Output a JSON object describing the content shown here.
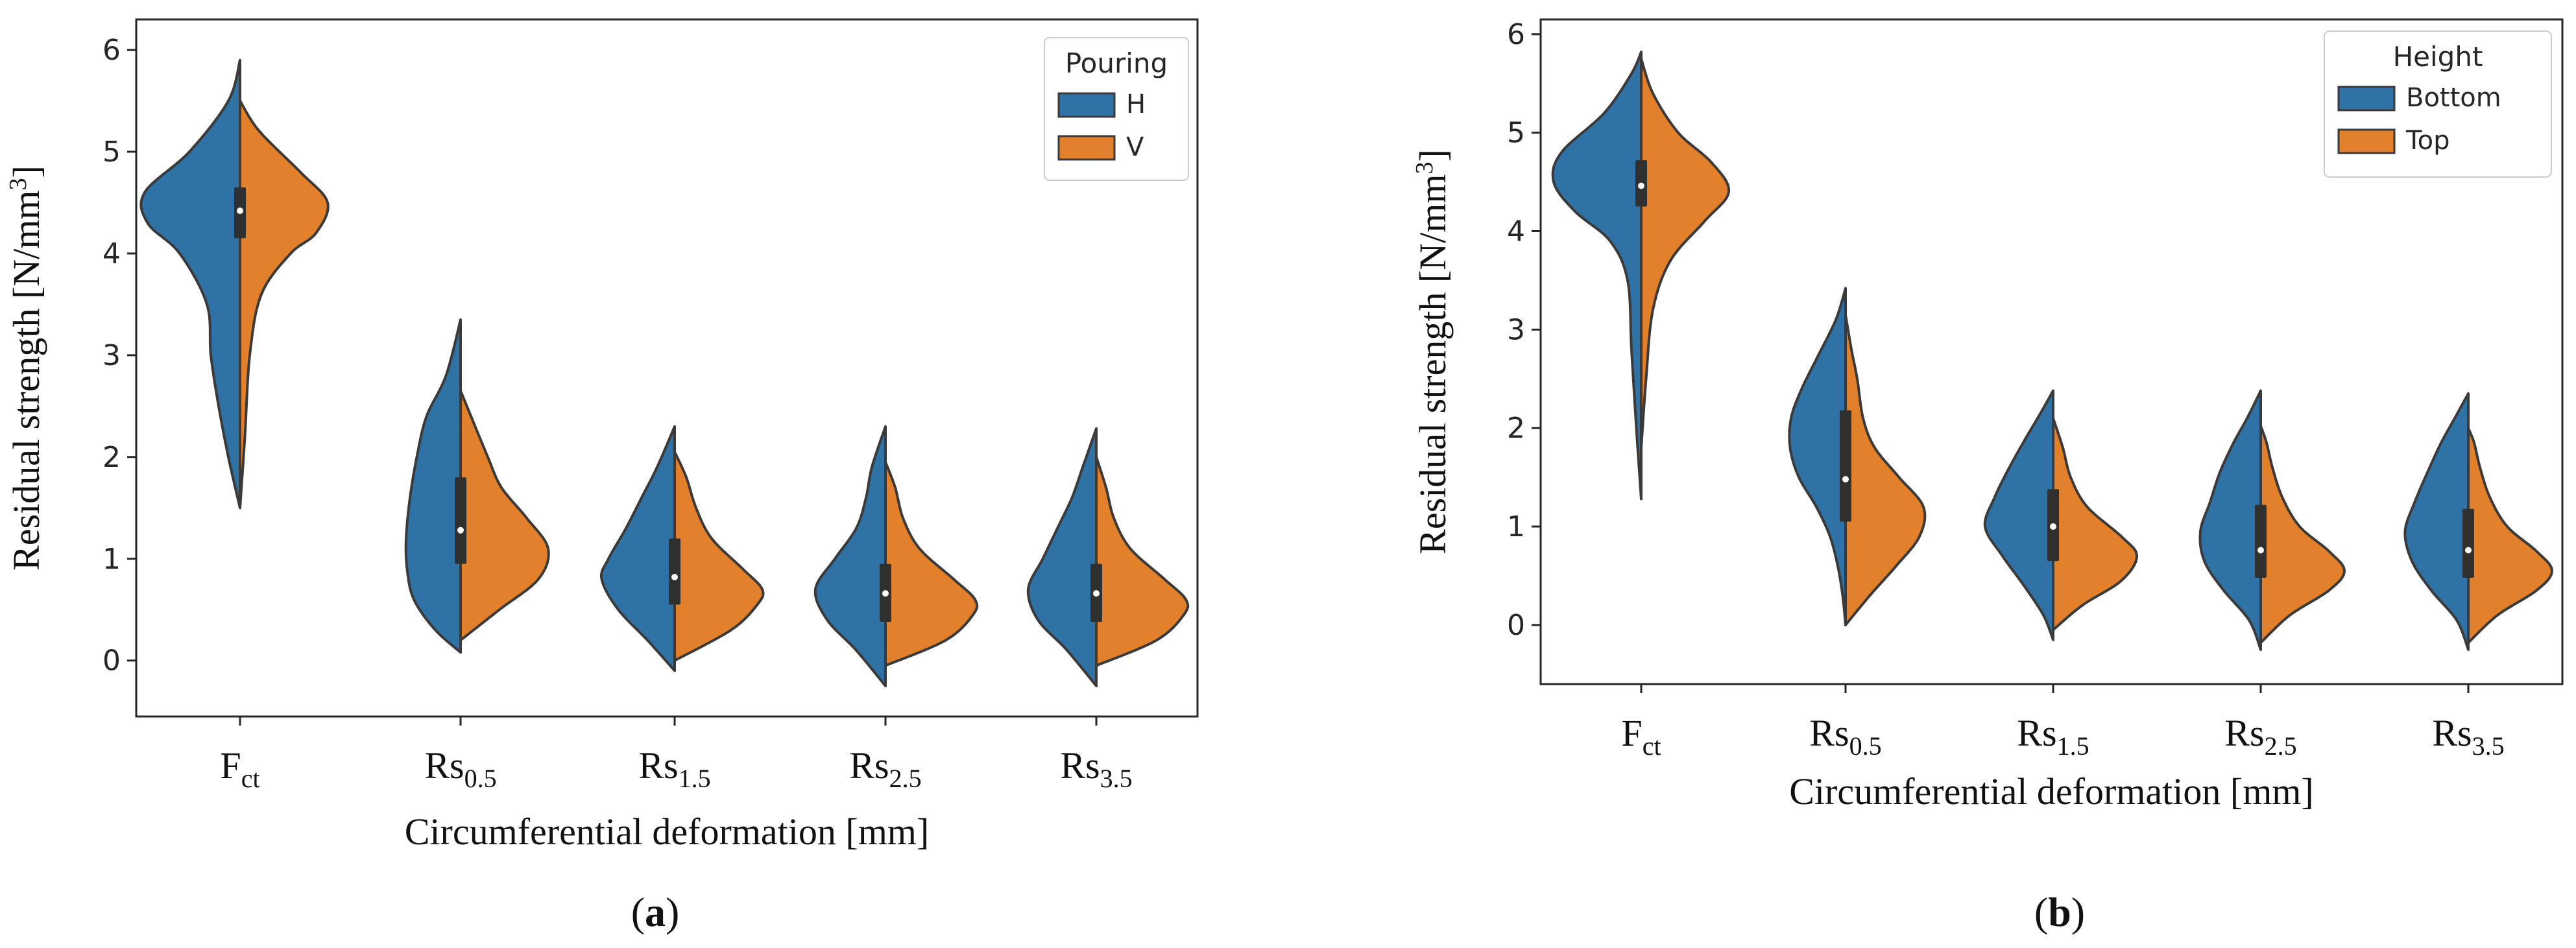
{
  "colors": {
    "series_a": "#2e72a6",
    "series_b": "#e3802b",
    "edge": "#3a3a3a",
    "box": "#303030",
    "median": "#ffffff",
    "frame": "#262626"
  },
  "chart_data": [
    {
      "panel": "a",
      "type": "violin",
      "panel_label_open": "(",
      "panel_label_letter": "a",
      "panel_label_close": ")",
      "xlabel": "Circumferential deformation [mm]",
      "ylabel_main": "Residual strength [N/mm",
      "ylabel_sup": "3",
      "ylabel_end": "]",
      "ylim": [
        -0.55,
        6.3
      ],
      "yticks": [
        "0",
        "1",
        "2",
        "3",
        "4",
        "5",
        "6"
      ],
      "grid": false,
      "legend": {
        "title": "Pouring",
        "placement": "top-right",
        "entries": [
          "H",
          "V"
        ]
      },
      "categories": [
        {
          "base": "F",
          "sub": "ct"
        },
        {
          "base": "Rs",
          "sub": "0.5"
        },
        {
          "base": "Rs",
          "sub": "1.5"
        },
        {
          "base": "Rs",
          "sub": "2.5"
        },
        {
          "base": "Rs",
          "sub": "3.5"
        }
      ],
      "series": [
        {
          "name": "H",
          "violins": [
            {
              "y": [
                1.5,
                2.0,
                2.5,
                3.0,
                3.5,
                4.0,
                4.3,
                4.6,
                5.0,
                5.5,
                5.9
              ],
              "w": [
                0.0,
                0.12,
                0.22,
                0.3,
                0.34,
                0.62,
                0.95,
                0.98,
                0.52,
                0.12,
                0.0
              ]
            },
            {
              "y": [
                0.08,
                0.3,
                0.6,
                0.9,
                1.2,
                1.6,
                2.0,
                2.4,
                2.8,
                3.35
              ],
              "w": [
                0.0,
                0.26,
                0.48,
                0.55,
                0.56,
                0.52,
                0.45,
                0.35,
                0.15,
                0.0
              ]
            },
            {
              "y": [
                -0.1,
                0.2,
                0.5,
                0.8,
                1.0,
                1.3,
                1.6,
                1.9,
                2.3
              ],
              "w": [
                0.0,
                0.28,
                0.58,
                0.75,
                0.68,
                0.5,
                0.34,
                0.18,
                0.0
              ]
            },
            {
              "y": [
                -0.25,
                0.1,
                0.4,
                0.7,
                1.0,
                1.3,
                1.6,
                1.9,
                2.3
              ],
              "w": [
                0.0,
                0.3,
                0.6,
                0.72,
                0.52,
                0.3,
                0.2,
                0.14,
                0.0
              ]
            },
            {
              "y": [
                -0.25,
                0.1,
                0.4,
                0.7,
                1.0,
                1.3,
                1.6,
                1.9,
                2.28
              ],
              "w": [
                0.0,
                0.3,
                0.6,
                0.7,
                0.55,
                0.4,
                0.25,
                0.14,
                0.0
              ]
            }
          ],
          "box": [
            {
              "q1": 4.15,
              "q3": 4.65,
              "median": 4.42
            },
            {
              "q1": 0.95,
              "q3": 1.8,
              "median": 1.28
            },
            {
              "q1": 0.55,
              "q3": 1.2,
              "median": 0.82
            },
            {
              "q1": 0.38,
              "q3": 0.95,
              "median": 0.66
            },
            {
              "q1": 0.38,
              "q3": 0.95,
              "median": 0.66
            }
          ]
        },
        {
          "name": "V",
          "violins": [
            {
              "y": [
                1.5,
                2.2,
                3.0,
                3.6,
                4.0,
                4.2,
                4.5,
                4.8,
                5.2,
                5.5
              ],
              "w": [
                0.0,
                0.05,
                0.1,
                0.22,
                0.52,
                0.78,
                0.9,
                0.62,
                0.2,
                0.0
              ]
            },
            {
              "y": [
                0.2,
                0.5,
                0.8,
                1.1,
                1.4,
                1.7,
                2.0,
                2.3,
                2.65
              ],
              "w": [
                0.0,
                0.4,
                0.8,
                0.9,
                0.68,
                0.42,
                0.28,
                0.15,
                0.0
              ]
            },
            {
              "y": [
                0.0,
                0.3,
                0.55,
                0.7,
                0.9,
                1.2,
                1.5,
                1.8,
                2.05
              ],
              "w": [
                0.0,
                0.58,
                0.85,
                0.9,
                0.7,
                0.38,
                0.22,
                0.12,
                0.0
              ]
            },
            {
              "y": [
                -0.05,
                0.2,
                0.45,
                0.6,
                0.8,
                1.1,
                1.4,
                1.7,
                1.95
              ],
              "w": [
                0.0,
                0.62,
                0.9,
                0.92,
                0.7,
                0.35,
                0.18,
                0.1,
                0.0
              ]
            },
            {
              "y": [
                -0.05,
                0.2,
                0.45,
                0.6,
                0.8,
                1.1,
                1.4,
                1.7,
                2.0
              ],
              "w": [
                0.0,
                0.62,
                0.9,
                0.92,
                0.7,
                0.35,
                0.18,
                0.1,
                0.0
              ]
            }
          ]
        }
      ]
    },
    {
      "panel": "b",
      "type": "violin",
      "panel_label_open": "(",
      "panel_label_letter": "b",
      "panel_label_close": ")",
      "xlabel": "Circumferential deformation [mm]",
      "ylabel_main": "Residual strength [N/mm",
      "ylabel_sup": "3",
      "ylabel_end": "]",
      "ylim": [
        -0.6,
        6.15
      ],
      "yticks": [
        "0",
        "1",
        "2",
        "3",
        "4",
        "5",
        "6"
      ],
      "grid": false,
      "legend": {
        "title": "Height",
        "placement": "top-right",
        "entries": [
          "Bottom",
          "Top"
        ]
      },
      "categories": [
        {
          "base": "F",
          "sub": "ct"
        },
        {
          "base": "Rs",
          "sub": "0.5"
        },
        {
          "base": "Rs",
          "sub": "1.5"
        },
        {
          "base": "Rs",
          "sub": "2.5"
        },
        {
          "base": "Rs",
          "sub": "3.5"
        }
      ],
      "series": [
        {
          "name": "Bottom",
          "violins": [
            {
              "y": [
                1.28,
                2.0,
                2.8,
                3.5,
                3.9,
                4.2,
                4.5,
                4.8,
                5.2,
                5.6,
                5.82
              ],
              "w": [
                0.0,
                0.05,
                0.1,
                0.14,
                0.32,
                0.68,
                0.9,
                0.82,
                0.38,
                0.1,
                0.0
              ]
            },
            {
              "y": [
                0.0,
                0.3,
                0.6,
                0.9,
                1.2,
                1.5,
                1.8,
                2.1,
                2.4,
                2.7,
                3.1,
                3.42
              ],
              "w": [
                0.0,
                0.03,
                0.08,
                0.16,
                0.3,
                0.48,
                0.57,
                0.56,
                0.45,
                0.3,
                0.1,
                0.0
              ]
            },
            {
              "y": [
                -0.15,
                0.1,
                0.4,
                0.7,
                1.0,
                1.3,
                1.6,
                1.9,
                2.15,
                2.38
              ],
              "w": [
                0.0,
                0.1,
                0.3,
                0.52,
                0.7,
                0.6,
                0.45,
                0.28,
                0.13,
                0.0
              ]
            },
            {
              "y": [
                -0.25,
                0.05,
                0.35,
                0.65,
                0.95,
                1.25,
                1.55,
                1.85,
                2.1,
                2.38
              ],
              "w": [
                0.0,
                0.12,
                0.38,
                0.58,
                0.62,
                0.52,
                0.42,
                0.28,
                0.14,
                0.0
              ]
            },
            {
              "y": [
                -0.25,
                0.05,
                0.35,
                0.65,
                0.95,
                1.25,
                1.55,
                1.85,
                2.1,
                2.35
              ],
              "w": [
                0.0,
                0.12,
                0.38,
                0.58,
                0.65,
                0.55,
                0.42,
                0.28,
                0.14,
                0.0
              ]
            }
          ],
          "box": [
            {
              "q1": 4.25,
              "q3": 4.72,
              "median": 4.46
            },
            {
              "q1": 1.05,
              "q3": 2.18,
              "median": 1.48
            },
            {
              "q1": 0.65,
              "q3": 1.38,
              "median": 1.0
            },
            {
              "q1": 0.48,
              "q3": 1.22,
              "median": 0.76
            },
            {
              "q1": 0.48,
              "q3": 1.18,
              "median": 0.76
            }
          ]
        },
        {
          "name": "Top",
          "violins": [
            {
              "y": [
                1.8,
                2.5,
                3.2,
                3.7,
                4.1,
                4.4,
                4.7,
                5.0,
                5.4,
                5.75
              ],
              "w": [
                0.0,
                0.05,
                0.12,
                0.3,
                0.65,
                0.9,
                0.72,
                0.38,
                0.12,
                0.0
              ]
            },
            {
              "y": [
                0.0,
                0.3,
                0.6,
                0.9,
                1.2,
                1.5,
                1.8,
                2.1,
                2.5,
                2.8,
                3.15
              ],
              "w": [
                0.0,
                0.25,
                0.52,
                0.76,
                0.8,
                0.55,
                0.3,
                0.18,
                0.12,
                0.06,
                0.0
              ]
            },
            {
              "y": [
                -0.05,
                0.2,
                0.45,
                0.7,
                0.9,
                1.2,
                1.5,
                1.8,
                2.1
              ],
              "w": [
                0.0,
                0.3,
                0.7,
                0.86,
                0.7,
                0.35,
                0.18,
                0.1,
                0.0
              ]
            },
            {
              "y": [
                -0.18,
                0.1,
                0.35,
                0.55,
                0.75,
                1.0,
                1.3,
                1.6,
                1.85,
                2.02
              ],
              "w": [
                0.0,
                0.3,
                0.7,
                0.86,
                0.7,
                0.4,
                0.22,
                0.12,
                0.06,
                0.0
              ]
            },
            {
              "y": [
                -0.18,
                0.1,
                0.35,
                0.55,
                0.75,
                1.0,
                1.3,
                1.6,
                1.85,
                2.0
              ],
              "w": [
                0.0,
                0.3,
                0.7,
                0.86,
                0.7,
                0.4,
                0.22,
                0.12,
                0.06,
                0.0
              ]
            }
          ]
        }
      ]
    }
  ]
}
